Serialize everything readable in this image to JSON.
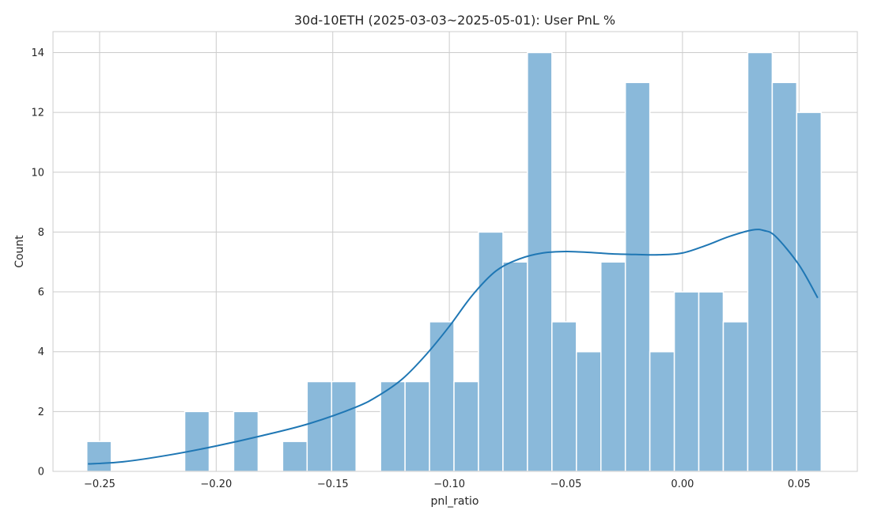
{
  "chart_data": {
    "type": "bar",
    "subtype": "histogram-with-kde",
    "title": "30d-10ETH (2025-03-03~2025-05-01): User PnL %",
    "xlabel": "pnl_ratio",
    "ylabel": "Count",
    "xlim": [
      -0.27,
      0.075
    ],
    "ylim": [
      0,
      14.7
    ],
    "grid": true,
    "x_ticks": [
      -0.25,
      -0.2,
      -0.15,
      -0.1,
      -0.05,
      0.0,
      0.05
    ],
    "x_tick_labels": [
      "−0.25",
      "−0.20",
      "−0.15",
      "−0.10",
      "−0.05",
      "0.00",
      "0.05"
    ],
    "y_ticks": [
      0,
      2,
      4,
      6,
      8,
      10,
      12,
      14
    ],
    "y_tick_labels": [
      "0",
      "2",
      "4",
      "6",
      "8",
      "10",
      "12",
      "14"
    ],
    "bin_edges": [
      -0.2555,
      -0.245,
      -0.2345,
      -0.224,
      -0.2135,
      -0.203,
      -0.1925,
      -0.182,
      -0.1715,
      -0.161,
      -0.1505,
      -0.14,
      -0.1295,
      -0.119,
      -0.1085,
      -0.098,
      -0.0875,
      -0.077,
      -0.0665,
      -0.056,
      -0.0455,
      -0.035,
      -0.0245,
      -0.014,
      -0.0035,
      0.007,
      0.0175,
      0.028,
      0.0385,
      0.049,
      0.0595
    ],
    "counts": [
      1,
      0,
      0,
      0,
      2,
      0,
      2,
      0,
      1,
      3,
      3,
      0,
      3,
      3,
      5,
      3,
      8,
      7,
      14,
      5,
      4,
      7,
      13,
      4,
      6,
      6,
      5,
      14,
      13,
      12
    ],
    "kde": {
      "x": [
        -0.255,
        -0.24,
        -0.22,
        -0.2,
        -0.18,
        -0.16,
        -0.14,
        -0.13,
        -0.12,
        -0.11,
        -0.1,
        -0.09,
        -0.08,
        -0.07,
        -0.06,
        -0.05,
        -0.04,
        -0.03,
        -0.02,
        -0.01,
        0.0,
        0.01,
        0.02,
        0.03,
        0.035,
        0.04,
        0.05,
        0.058
      ],
      "y": [
        0.25,
        0.32,
        0.55,
        0.85,
        1.2,
        1.6,
        2.15,
        2.55,
        3.1,
        3.9,
        4.85,
        5.9,
        6.7,
        7.1,
        7.3,
        7.35,
        7.32,
        7.27,
        7.25,
        7.24,
        7.3,
        7.55,
        7.85,
        8.07,
        8.05,
        7.85,
        6.9,
        5.8
      ]
    },
    "colors": {
      "bar_fill": "#8ab9da",
      "bar_edge": "#ffffff",
      "kde_line": "#1f77b4",
      "grid": "#cccccc",
      "axes_frame": "#cccccc"
    }
  }
}
